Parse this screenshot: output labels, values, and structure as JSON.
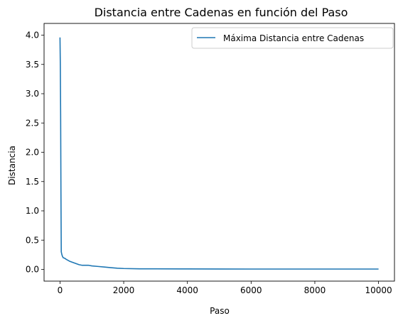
{
  "chart_data": {
    "type": "line",
    "title": "Distancia entre Cadenas en función del Paso",
    "xlabel": "Paso",
    "ylabel": "Distancia",
    "xlim": [
      -500,
      10500
    ],
    "ylim": [
      -0.2,
      4.2
    ],
    "xticks": [
      0,
      2000,
      4000,
      6000,
      8000,
      10000
    ],
    "xtick_labels": [
      "0",
      "2000",
      "4000",
      "6000",
      "8000",
      "10000"
    ],
    "yticks": [
      0.0,
      0.5,
      1.0,
      1.5,
      2.0,
      2.5,
      3.0,
      3.5,
      4.0
    ],
    "ytick_labels": [
      "0.0",
      "0.5",
      "1.0",
      "1.5",
      "2.0",
      "2.5",
      "3.0",
      "3.5",
      "4.0"
    ],
    "grid": false,
    "legend_position": "upper-right",
    "series": [
      {
        "name": "Máxima Distancia entre Cadenas",
        "color": "#1f77b4",
        "x": [
          0,
          10,
          20,
          30,
          40,
          60,
          80,
          100,
          150,
          200,
          300,
          400,
          500,
          600,
          700,
          800,
          900,
          1000,
          1200,
          1400,
          1600,
          1800,
          2000,
          2500,
          3000,
          4000,
          5000,
          6000,
          7000,
          8000,
          9000,
          10000
        ],
        "y": [
          3.96,
          3.5,
          2.65,
          1.3,
          0.3,
          0.25,
          0.22,
          0.2,
          0.19,
          0.17,
          0.14,
          0.12,
          0.1,
          0.08,
          0.07,
          0.07,
          0.07,
          0.06,
          0.05,
          0.04,
          0.03,
          0.02,
          0.015,
          0.01,
          0.01,
          0.008,
          0.007,
          0.006,
          0.006,
          0.006,
          0.006,
          0.006
        ]
      }
    ]
  }
}
